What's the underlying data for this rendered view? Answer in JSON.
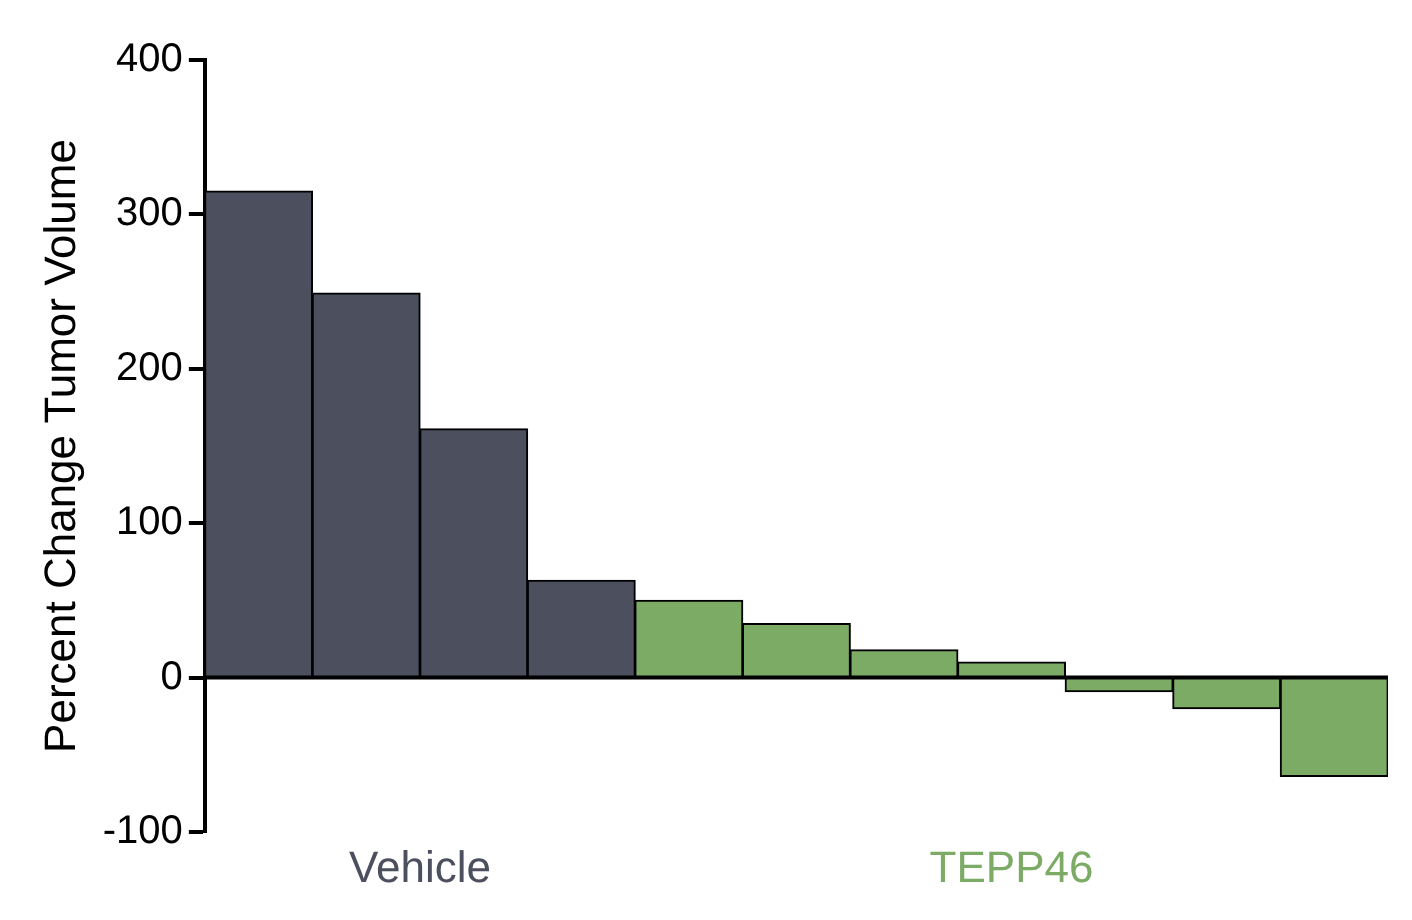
{
  "chart_data": {
    "type": "bar",
    "ylabel": "Percent Change Tumor Volume",
    "categories": [
      null,
      null,
      null,
      null,
      null,
      null,
      null,
      null,
      null,
      null,
      null
    ],
    "series": [
      {
        "name": "Vehicle",
        "color": "#4b4f5e",
        "values": [
          315,
          249,
          161,
          63,
          null,
          null,
          null,
          null,
          null,
          null,
          null
        ]
      },
      {
        "name": "TEPP46",
        "color": "#7cab66",
        "values": [
          null,
          null,
          null,
          null,
          50,
          35,
          18,
          10,
          -9,
          -20,
          -64
        ]
      }
    ],
    "ylim": [
      -100,
      400
    ],
    "yticks": [
      -100,
      0,
      100,
      200,
      300,
      400
    ],
    "grid": false,
    "legend": false,
    "ref_lines": [
      {
        "axis": "y",
        "value": 0,
        "color": "#000000"
      }
    ]
  }
}
